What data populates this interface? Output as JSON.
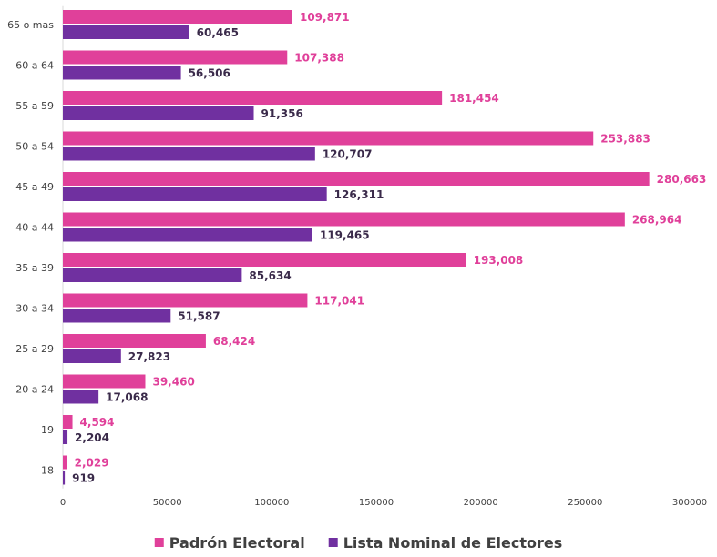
{
  "chart_data": {
    "type": "bar",
    "orientation": "horizontal",
    "categories": [
      "65 o mas",
      "60 a 64",
      "55 a 59",
      "50 a 54",
      "45 a 49",
      "40 a 44",
      "35 a 39",
      "30 a 34",
      "25 a 29",
      "20 a 24",
      "19",
      "18"
    ],
    "series": [
      {
        "name": "Padrón Electoral",
        "color": "#e0409a",
        "label_color": "#e0409a",
        "values": [
          109871,
          107388,
          181454,
          253883,
          280663,
          268964,
          193008,
          117041,
          68424,
          39460,
          4594,
          2029
        ],
        "labels": [
          "109,871",
          "107,388",
          "181,454",
          "253,883",
          "280,663",
          "268,964",
          "193,008",
          "117,041",
          "68,424",
          "39,460",
          "4,594",
          "2,029"
        ]
      },
      {
        "name": "Lista Nominal de Electores",
        "color": "#7030a0",
        "label_color": "#3a2a4a",
        "values": [
          60465,
          56506,
          91356,
          120707,
          126311,
          119465,
          85634,
          51587,
          27823,
          17068,
          2204,
          919
        ],
        "labels": [
          "60,465",
          "56,506",
          "91,356",
          "120,707",
          "126,311",
          "119,465",
          "85,634",
          "51,587",
          "27,823",
          "17,068",
          "2,204",
          "919"
        ]
      }
    ],
    "xlim": [
      0,
      300000
    ],
    "xticks": [
      "0",
      "50000",
      "100000",
      "150000",
      "200000",
      "250000",
      "300000"
    ],
    "xtick_values": [
      0,
      50000,
      100000,
      150000,
      200000,
      250000,
      300000
    ],
    "grid": false,
    "legend_position": "bottom"
  }
}
